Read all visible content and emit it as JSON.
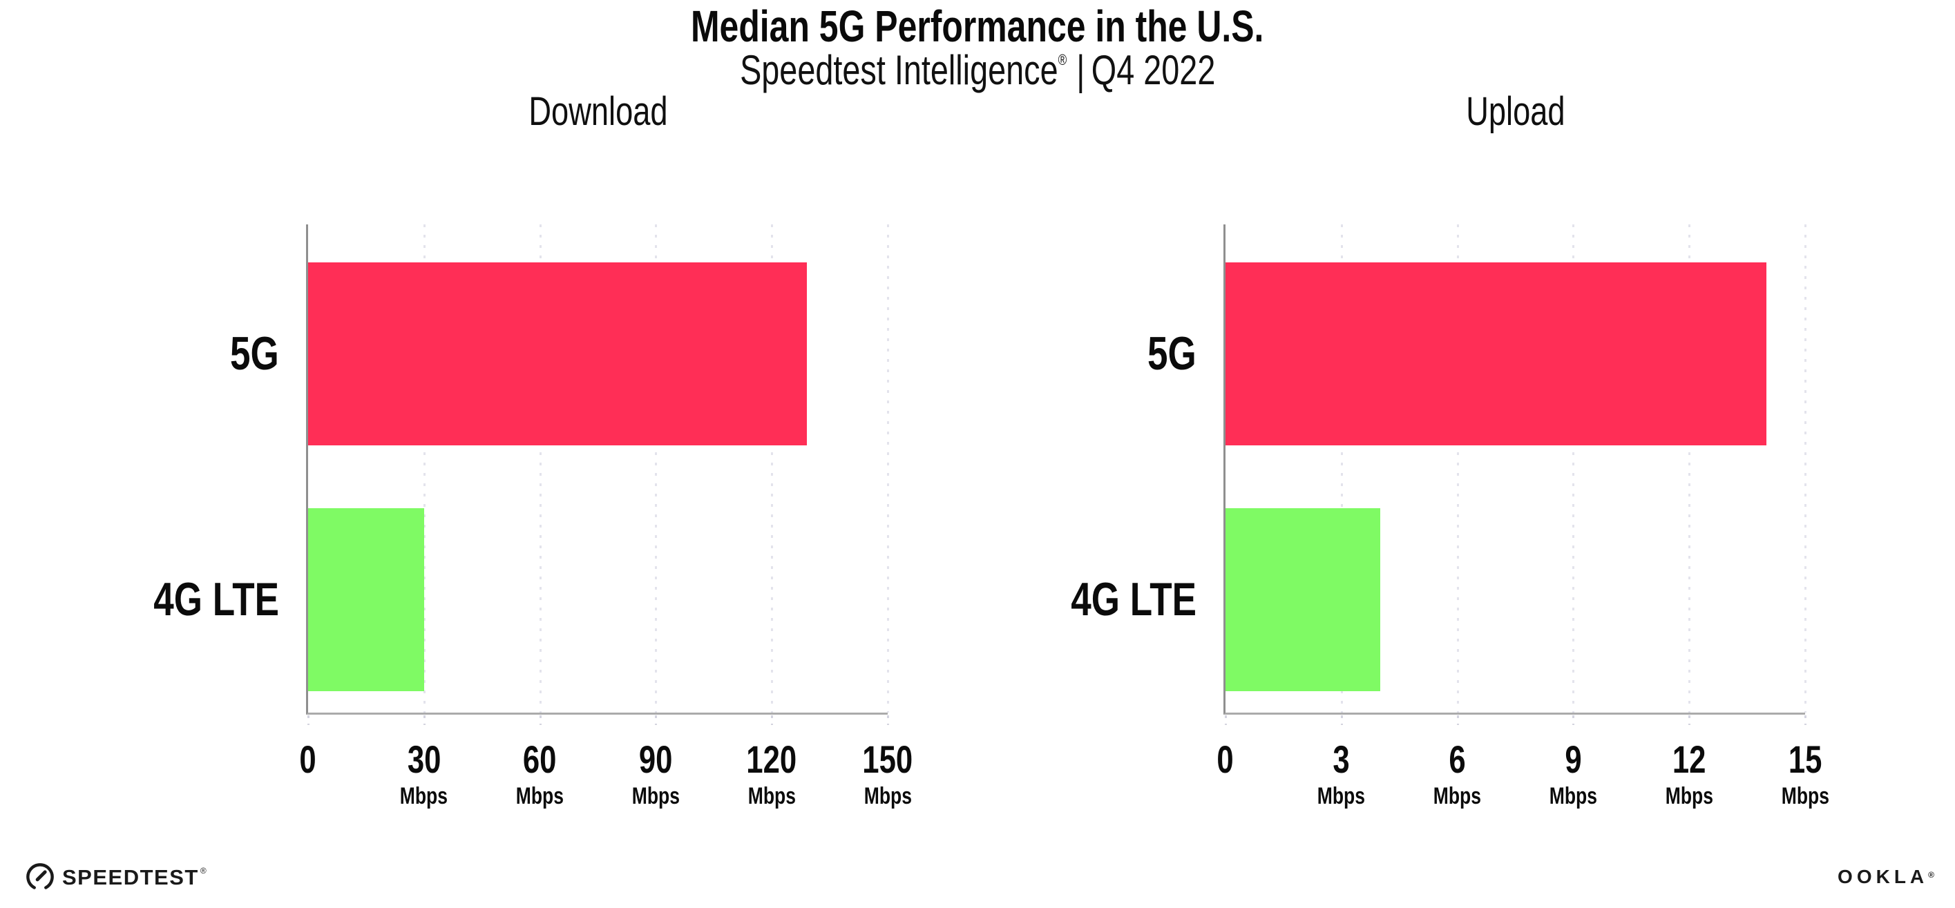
{
  "header": {
    "title": "Median 5G Performance in the U.S.",
    "subtitle": {
      "brand": "Speedtest Intelligence",
      "mark": "®",
      "separator": "|",
      "period": "Q4 2022"
    }
  },
  "chart_data": [
    {
      "type": "bar",
      "orientation": "horizontal",
      "title": "Download",
      "categories": [
        "5G",
        "4G LTE"
      ],
      "values": [
        129,
        30
      ],
      "value_unit": "Mbps",
      "xlim": [
        0,
        150
      ],
      "xticks": [
        0,
        30,
        60,
        90,
        120,
        150
      ],
      "xtick_unit": "Mbps",
      "bar_colors": [
        "#ff2e56",
        "#7ffa64"
      ],
      "grid": "vertical-dotted",
      "legend_position": "none"
    },
    {
      "type": "bar",
      "orientation": "horizontal",
      "title": "Upload",
      "categories": [
        "5G",
        "4G LTE"
      ],
      "values": [
        14,
        4
      ],
      "value_unit": "Mbps",
      "xlim": [
        0,
        15
      ],
      "xticks": [
        0,
        3,
        6,
        9,
        12,
        15
      ],
      "xtick_unit": "Mbps",
      "bar_colors": [
        "#ff2e56",
        "#7ffa64"
      ],
      "grid": "vertical-dotted",
      "legend_position": "none"
    }
  ],
  "footer": {
    "speedtest": {
      "label": "SPEEDTEST",
      "mark": "®"
    },
    "ookla": {
      "label": "OOKLA",
      "mark": "®"
    }
  },
  "colors": {
    "bar_5g": "#ff2e56",
    "bar_4g_lte": "#7ffa64",
    "gridline": "#e3e3ec",
    "axis_line": "#9a9a9a",
    "text": "#0d0d0d",
    "background": "#ffffff"
  }
}
